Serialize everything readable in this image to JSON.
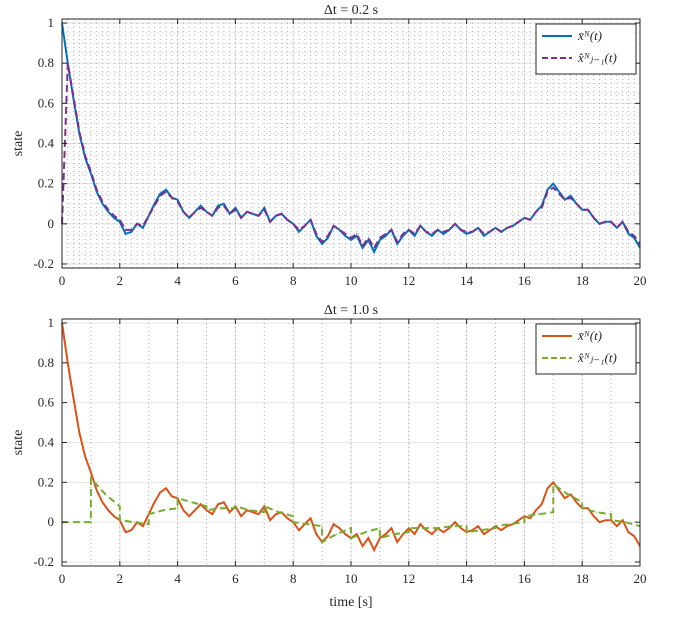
{
  "chart_data": [
    {
      "type": "line",
      "title": "Δt = 0.2 s",
      "xlabel": "",
      "ylabel": "state",
      "xlim": [
        0,
        20
      ],
      "ylim": [
        -0.22,
        1.02
      ],
      "xticks": [
        0,
        2,
        4,
        6,
        8,
        10,
        12,
        14,
        16,
        18,
        20
      ],
      "yticks": [
        -0.2,
        0,
        0.2,
        0.4,
        0.6,
        0.8,
        1
      ],
      "ytick_labels": [
        "-0.2",
        "0",
        "0.2",
        "0.4",
        "0.6",
        "0.8",
        "1"
      ],
      "grid": "on",
      "dotted_vertical_interval": 0.2,
      "legend_position": "top-right",
      "series": [
        {
          "name": "x̄ᴺ(t)",
          "style": "solid",
          "color": "#0072BD",
          "x": [
            0,
            0.2,
            0.4,
            0.6,
            0.8,
            1.0,
            1.2,
            1.4,
            1.6,
            1.8,
            2.0,
            2.2,
            2.4,
            2.6,
            2.8,
            3.0,
            3.2,
            3.4,
            3.6,
            3.8,
            4.0,
            4.2,
            4.4,
            4.6,
            4.8,
            5.0,
            5.2,
            5.4,
            5.6,
            5.8,
            6.0,
            6.2,
            6.4,
            6.6,
            6.8,
            7.0,
            7.2,
            7.4,
            7.6,
            7.8,
            8.0,
            8.2,
            8.4,
            8.6,
            8.8,
            9.0,
            9.2,
            9.4,
            9.6,
            9.8,
            10.0,
            10.2,
            10.4,
            10.6,
            10.8,
            11.0,
            11.2,
            11.4,
            11.6,
            11.8,
            12.0,
            12.2,
            12.4,
            12.6,
            12.8,
            13.0,
            13.2,
            13.4,
            13.6,
            13.8,
            14.0,
            14.2,
            14.4,
            14.6,
            14.8,
            15.0,
            15.2,
            15.4,
            15.6,
            15.8,
            16.0,
            16.2,
            16.4,
            16.6,
            16.8,
            17.0,
            17.2,
            17.4,
            17.6,
            17.8,
            18.0,
            18.2,
            18.4,
            18.6,
            18.8,
            19.0,
            19.2,
            19.4,
            19.6,
            19.8,
            20.0
          ],
          "y": [
            1.0,
            0.8,
            0.62,
            0.45,
            0.33,
            0.25,
            0.16,
            0.1,
            0.06,
            0.03,
            0.01,
            -0.05,
            -0.04,
            0.0,
            -0.02,
            0.04,
            0.1,
            0.15,
            0.17,
            0.13,
            0.12,
            0.06,
            0.03,
            0.06,
            0.09,
            0.06,
            0.04,
            0.09,
            0.1,
            0.05,
            0.08,
            0.03,
            0.06,
            0.05,
            0.04,
            0.08,
            0.01,
            0.04,
            0.05,
            0.02,
            0.0,
            -0.04,
            -0.01,
            0.02,
            -0.06,
            -0.1,
            -0.07,
            -0.01,
            -0.03,
            -0.06,
            -0.08,
            -0.06,
            -0.12,
            -0.08,
            -0.14,
            -0.08,
            -0.06,
            -0.03,
            -0.1,
            -0.06,
            -0.03,
            -0.06,
            -0.01,
            -0.04,
            -0.06,
            -0.03,
            -0.05,
            -0.03,
            0.0,
            -0.03,
            -0.05,
            -0.04,
            -0.02,
            -0.06,
            -0.04,
            -0.02,
            -0.04,
            -0.02,
            -0.01,
            0.01,
            0.03,
            0.02,
            0.06,
            0.09,
            0.17,
            0.2,
            0.16,
            0.12,
            0.14,
            0.1,
            0.07,
            0.07,
            0.03,
            0.0,
            0.01,
            0.01,
            -0.02,
            0.01,
            -0.05,
            -0.07,
            -0.12
          ]
        },
        {
          "name": "x̂ᴺⱼ₋₁(t)",
          "style": "dashed",
          "color": "#7E2F8E",
          "x": [
            0,
            0.2,
            0.4,
            0.6,
            0.8,
            1.0,
            1.2,
            1.4,
            1.6,
            1.8,
            2.0,
            2.2,
            2.4,
            2.6,
            2.8,
            3.0,
            3.2,
            3.4,
            3.6,
            3.8,
            4.0,
            4.2,
            4.4,
            4.6,
            4.8,
            5.0,
            5.2,
            5.4,
            5.6,
            5.8,
            6.0,
            6.2,
            6.4,
            6.6,
            6.8,
            7.0,
            7.2,
            7.4,
            7.6,
            7.8,
            8.0,
            8.2,
            8.4,
            8.6,
            8.8,
            9.0,
            9.2,
            9.4,
            9.6,
            9.8,
            10.0,
            10.2,
            10.4,
            10.6,
            10.8,
            11.0,
            11.2,
            11.4,
            11.6,
            11.8,
            12.0,
            12.2,
            12.4,
            12.6,
            12.8,
            13.0,
            13.2,
            13.4,
            13.6,
            13.8,
            14.0,
            14.2,
            14.4,
            14.6,
            14.8,
            15.0,
            15.2,
            15.4,
            15.6,
            15.8,
            16.0,
            16.2,
            16.4,
            16.6,
            16.8,
            17.0,
            17.2,
            17.4,
            17.6,
            17.8,
            18.0,
            18.2,
            18.4,
            18.6,
            18.8,
            19.0,
            19.2,
            19.4,
            19.6,
            19.8,
            20.0
          ],
          "y": [
            0.0,
            0.8,
            0.63,
            0.46,
            0.34,
            0.26,
            0.17,
            0.11,
            0.07,
            0.04,
            0.02,
            -0.03,
            -0.03,
            0.0,
            -0.01,
            0.04,
            0.09,
            0.14,
            0.16,
            0.13,
            0.11,
            0.06,
            0.03,
            0.06,
            0.08,
            0.06,
            0.04,
            0.08,
            0.09,
            0.05,
            0.07,
            0.03,
            0.06,
            0.05,
            0.04,
            0.07,
            0.01,
            0.04,
            0.05,
            0.02,
            0.0,
            -0.03,
            -0.01,
            0.02,
            -0.05,
            -0.09,
            -0.06,
            -0.01,
            -0.03,
            -0.05,
            -0.07,
            -0.05,
            -0.11,
            -0.07,
            -0.12,
            -0.07,
            -0.05,
            -0.03,
            -0.09,
            -0.05,
            -0.03,
            -0.05,
            -0.01,
            -0.04,
            -0.05,
            -0.03,
            -0.04,
            -0.03,
            0.0,
            -0.03,
            -0.04,
            -0.04,
            -0.02,
            -0.05,
            -0.04,
            -0.02,
            -0.04,
            -0.02,
            -0.01,
            0.01,
            0.03,
            0.02,
            0.06,
            0.08,
            0.16,
            0.18,
            0.15,
            0.12,
            0.13,
            0.1,
            0.07,
            0.07,
            0.03,
            0.0,
            0.01,
            0.01,
            -0.02,
            0.01,
            -0.04,
            -0.06,
            -0.1
          ]
        }
      ]
    },
    {
      "type": "line",
      "title": "Δt = 1.0 s",
      "xlabel": "time [s]",
      "ylabel": "state",
      "xlim": [
        0,
        20
      ],
      "ylim": [
        -0.22,
        1.02
      ],
      "xticks": [
        0,
        2,
        4,
        6,
        8,
        10,
        12,
        14,
        16,
        18,
        20
      ],
      "yticks": [
        -0.2,
        0,
        0.2,
        0.4,
        0.6,
        0.8,
        1
      ],
      "ytick_labels": [
        "-0.2",
        "0",
        "0.2",
        "0.4",
        "0.6",
        "0.8",
        "1"
      ],
      "grid": "on",
      "dotted_vertical_interval": 1.0,
      "legend_position": "top-right",
      "series": [
        {
          "name": "x̄ᴺ(t)",
          "style": "solid",
          "color": "#D95319",
          "x": [
            0,
            0.2,
            0.4,
            0.6,
            0.8,
            1.0,
            1.2,
            1.4,
            1.6,
            1.8,
            2.0,
            2.2,
            2.4,
            2.6,
            2.8,
            3.0,
            3.2,
            3.4,
            3.6,
            3.8,
            4.0,
            4.2,
            4.4,
            4.6,
            4.8,
            5.0,
            5.2,
            5.4,
            5.6,
            5.8,
            6.0,
            6.2,
            6.4,
            6.6,
            6.8,
            7.0,
            7.2,
            7.4,
            7.6,
            7.8,
            8.0,
            8.2,
            8.4,
            8.6,
            8.8,
            9.0,
            9.2,
            9.4,
            9.6,
            9.8,
            10.0,
            10.2,
            10.4,
            10.6,
            10.8,
            11.0,
            11.2,
            11.4,
            11.6,
            11.8,
            12.0,
            12.2,
            12.4,
            12.6,
            12.8,
            13.0,
            13.2,
            13.4,
            13.6,
            13.8,
            14.0,
            14.2,
            14.4,
            14.6,
            14.8,
            15.0,
            15.2,
            15.4,
            15.6,
            15.8,
            16.0,
            16.2,
            16.4,
            16.6,
            16.8,
            17.0,
            17.2,
            17.4,
            17.6,
            17.8,
            18.0,
            18.2,
            18.4,
            18.6,
            18.8,
            19.0,
            19.2,
            19.4,
            19.6,
            19.8,
            20.0
          ],
          "y": [
            1.0,
            0.8,
            0.62,
            0.45,
            0.33,
            0.25,
            0.16,
            0.1,
            0.06,
            0.03,
            0.01,
            -0.05,
            -0.04,
            0.0,
            -0.02,
            0.04,
            0.1,
            0.15,
            0.17,
            0.13,
            0.12,
            0.06,
            0.03,
            0.06,
            0.09,
            0.06,
            0.04,
            0.09,
            0.1,
            0.05,
            0.08,
            0.03,
            0.06,
            0.05,
            0.04,
            0.08,
            0.01,
            0.04,
            0.05,
            0.02,
            0.0,
            -0.04,
            -0.01,
            0.02,
            -0.06,
            -0.1,
            -0.07,
            -0.01,
            -0.03,
            -0.06,
            -0.08,
            -0.06,
            -0.12,
            -0.08,
            -0.14,
            -0.08,
            -0.06,
            -0.03,
            -0.1,
            -0.06,
            -0.03,
            -0.06,
            -0.01,
            -0.04,
            -0.06,
            -0.03,
            -0.05,
            -0.03,
            0.0,
            -0.03,
            -0.05,
            -0.04,
            -0.02,
            -0.06,
            -0.04,
            -0.02,
            -0.04,
            -0.02,
            -0.01,
            0.01,
            0.03,
            0.02,
            0.06,
            0.09,
            0.17,
            0.2,
            0.16,
            0.12,
            0.14,
            0.1,
            0.07,
            0.07,
            0.03,
            0.0,
            0.01,
            0.01,
            -0.02,
            0.01,
            -0.05,
            -0.07,
            -0.12
          ]
        },
        {
          "name": "x̂ᴺⱼ₋₁(t)",
          "style": "dashed",
          "color": "#77AC30",
          "x": [
            0,
            0.5,
            0.999,
            1.0,
            1.5,
            1.999,
            2.0,
            2.5,
            2.999,
            3.0,
            3.5,
            3.999,
            4.0,
            4.5,
            4.999,
            5.0,
            5.5,
            5.999,
            6.0,
            6.5,
            6.999,
            7.0,
            7.5,
            7.999,
            8.0,
            8.5,
            8.999,
            9.0,
            9.5,
            9.999,
            10.0,
            10.5,
            10.999,
            11.0,
            11.5,
            11.999,
            12.0,
            12.5,
            12.999,
            13.0,
            13.5,
            13.999,
            14.0,
            14.5,
            14.999,
            15.0,
            15.5,
            15.999,
            16.0,
            16.5,
            16.999,
            17.0,
            17.5,
            17.999,
            18.0,
            18.5,
            18.999,
            19.0,
            19.5,
            20.0
          ],
          "y": [
            0.0,
            0.0,
            0.0,
            0.22,
            0.14,
            0.08,
            0.01,
            0.0,
            -0.01,
            0.04,
            0.06,
            0.07,
            0.12,
            0.1,
            0.08,
            0.06,
            0.07,
            0.07,
            0.08,
            0.06,
            0.05,
            0.08,
            0.05,
            0.03,
            0.0,
            -0.01,
            -0.02,
            -0.1,
            -0.06,
            -0.03,
            -0.08,
            -0.05,
            -0.03,
            -0.08,
            -0.06,
            -0.05,
            -0.03,
            -0.03,
            -0.03,
            -0.03,
            -0.02,
            -0.02,
            -0.05,
            -0.04,
            -0.03,
            -0.02,
            -0.01,
            0.0,
            0.03,
            0.04,
            0.05,
            0.19,
            0.14,
            0.1,
            0.07,
            0.05,
            0.04,
            0.01,
            0.0,
            -0.02
          ]
        }
      ]
    }
  ]
}
